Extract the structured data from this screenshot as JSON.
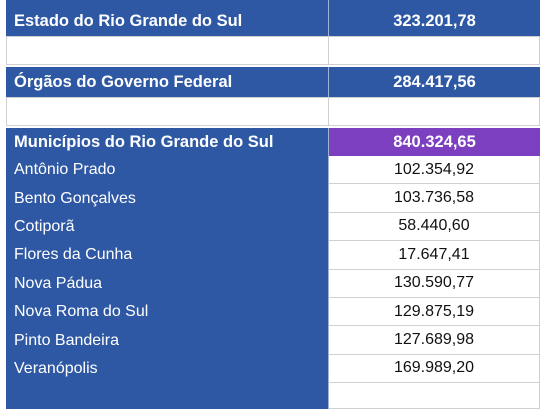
{
  "rows": {
    "estado": {
      "label": "Estado do Rio Grande do Sul",
      "value": "323.201,78"
    },
    "orgaos": {
      "label": "Órgãos do Governo Federal",
      "value": "284.417,56"
    },
    "municipios": {
      "label": "Municípios do Rio Grande do Sul",
      "value": "840.324,65"
    }
  },
  "municipalities": [
    {
      "name": "Antônio Prado",
      "value": "102.354,92"
    },
    {
      "name": "Bento Gonçalves",
      "value": "103.736,58"
    },
    {
      "name": "Cotiporã",
      "value": "58.440,60"
    },
    {
      "name": "Flores da Cunha",
      "value": "17.647,41"
    },
    {
      "name": "Nova Pádua",
      "value": "130.590,77"
    },
    {
      "name": "Nova Roma do Sul",
      "value": "129.875,19"
    },
    {
      "name": "Pinto Bandeira",
      "value": "127.689,98"
    },
    {
      "name": "Veranópolis",
      "value": "169.989,20"
    }
  ],
  "colors": {
    "header_blue": "#2e58a3",
    "highlight_purple": "#7b3fbf"
  }
}
